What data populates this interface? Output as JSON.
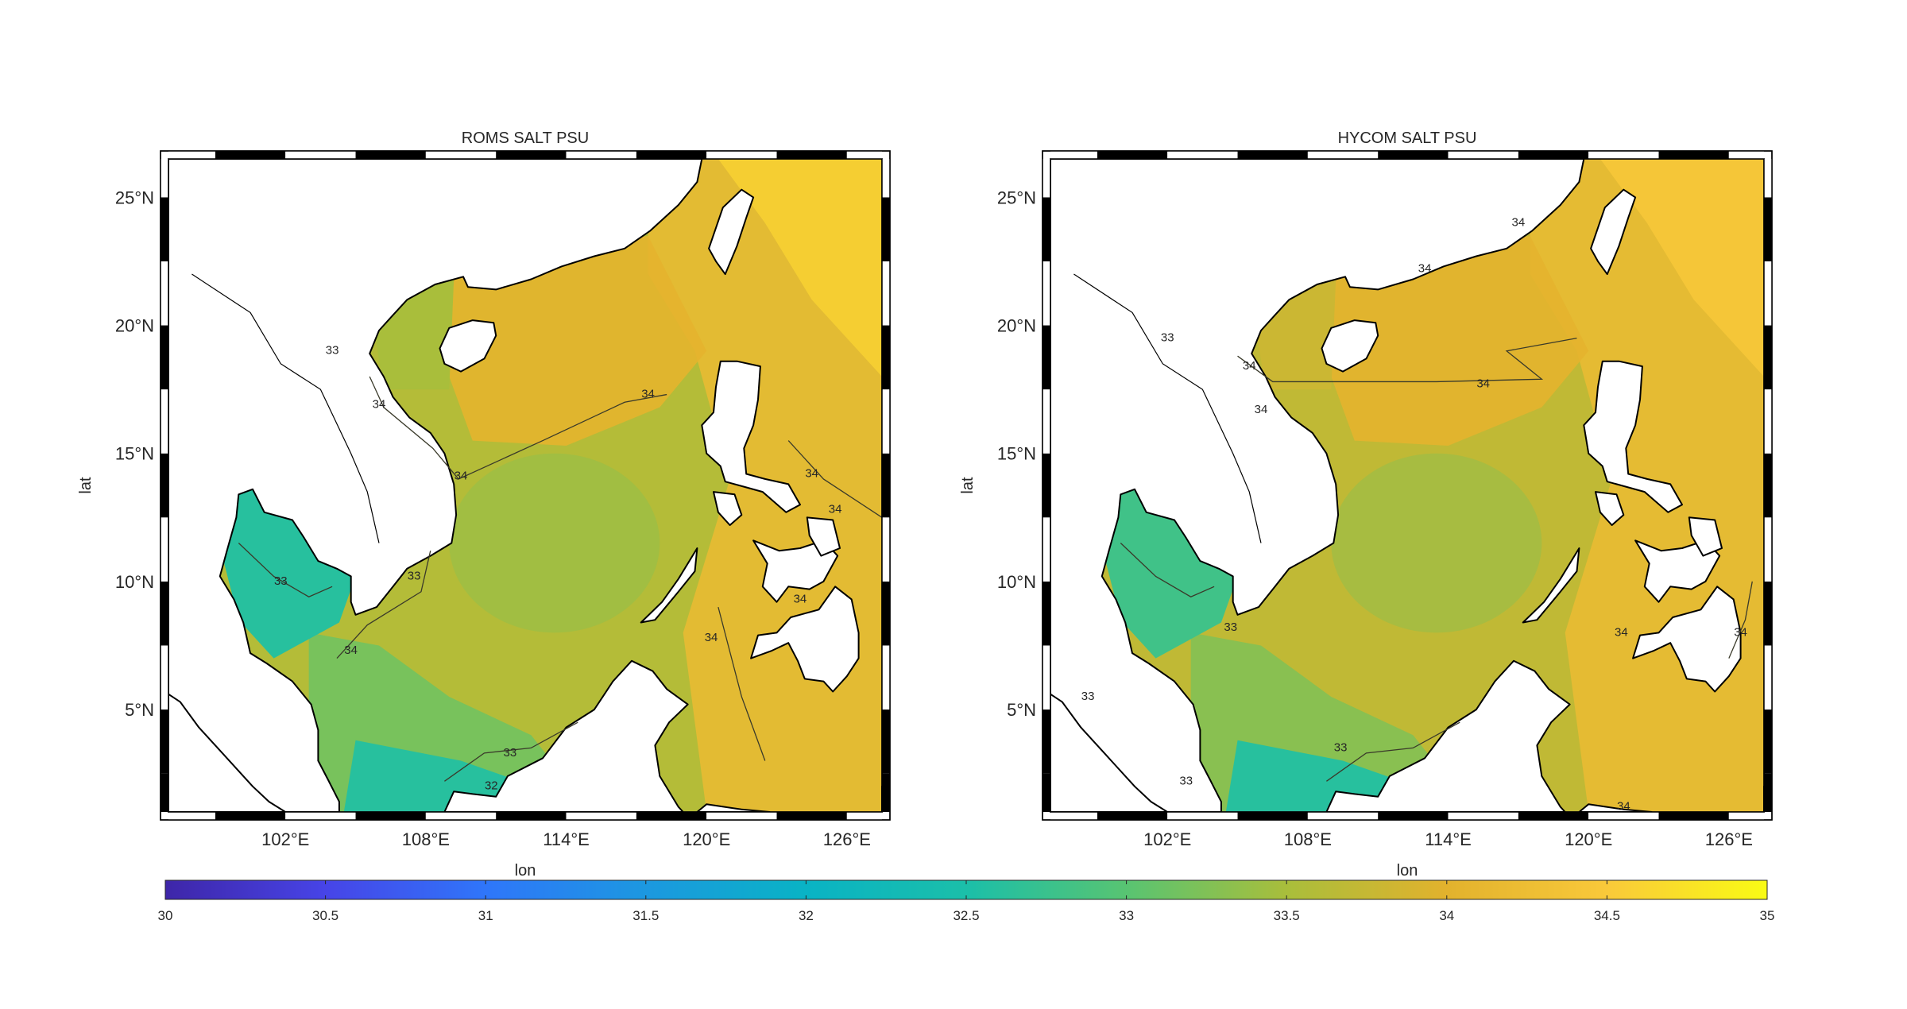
{
  "figure": {
    "colors": {
      "land": "#ffffff",
      "coast": "#000000",
      "contour": "#3a3a2a",
      "frame_dark": "#000000",
      "frame_light": "#ffffff"
    }
  },
  "chart_data": [
    {
      "type": "heatmap",
      "title": "ROMS SALT  PSU",
      "xlabel": "lon",
      "ylabel": "lat",
      "xlim": [
        97,
        127.5
      ],
      "ylim": [
        1,
        26.5
      ],
      "xticks": [
        102,
        108,
        114,
        120,
        126
      ],
      "xtick_labels": [
        "102°E",
        "108°E",
        "114°E",
        "120°E",
        "126°E"
      ],
      "yticks": [
        5,
        10,
        15,
        20,
        25
      ],
      "ytick_labels": [
        "5°N",
        "10°N",
        "15°N",
        "20°N",
        "25°N"
      ],
      "contour_levels": [
        32,
        33,
        34
      ],
      "contour_labels": [
        {
          "lon": 104.0,
          "lat": 19.0,
          "text": "33"
        },
        {
          "lon": 106.0,
          "lat": 16.9,
          "text": "34"
        },
        {
          "lon": 109.5,
          "lat": 14.1,
          "text": "34"
        },
        {
          "lon": 117.5,
          "lat": 17.3,
          "text": "34"
        },
        {
          "lon": 124.5,
          "lat": 14.2,
          "text": "34"
        },
        {
          "lon": 125.5,
          "lat": 12.8,
          "text": "34"
        },
        {
          "lon": 101.8,
          "lat": 10.0,
          "text": "33"
        },
        {
          "lon": 107.5,
          "lat": 10.2,
          "text": "33"
        },
        {
          "lon": 104.8,
          "lat": 7.3,
          "text": "34"
        },
        {
          "lon": 120.2,
          "lat": 7.8,
          "text": "34"
        },
        {
          "lon": 124.0,
          "lat": 9.3,
          "text": "34"
        },
        {
          "lon": 111.6,
          "lat": 3.3,
          "text": "33"
        },
        {
          "lon": 110.8,
          "lat": 2.0,
          "text": "32"
        }
      ],
      "field_description": {
        "open_sea": 33.6,
        "northeast_pacific": 34.6,
        "gulf_of_thailand": 32.6,
        "sunda_shelf": 33.2
      }
    },
    {
      "type": "heatmap",
      "title": "HYCOM SALT  PSU",
      "xlabel": "lon",
      "ylabel": "lat",
      "xlim": [
        97,
        127.5
      ],
      "ylim": [
        1,
        26.5
      ],
      "xticks": [
        102,
        108,
        114,
        120,
        126
      ],
      "xtick_labels": [
        "102°E",
        "108°E",
        "114°E",
        "120°E",
        "126°E"
      ],
      "yticks": [
        5,
        10,
        15,
        20,
        25
      ],
      "ytick_labels": [
        "5°N",
        "10°N",
        "15°N",
        "20°N",
        "25°N"
      ],
      "contour_levels": [
        33,
        34
      ],
      "contour_labels": [
        {
          "lon": 102.0,
          "lat": 19.5,
          "text": "33"
        },
        {
          "lon": 106.0,
          "lat": 16.7,
          "text": "34"
        },
        {
          "lon": 105.5,
          "lat": 18.4,
          "text": "34"
        },
        {
          "lon": 113.0,
          "lat": 22.2,
          "text": "34"
        },
        {
          "lon": 117.0,
          "lat": 24.0,
          "text": "34"
        },
        {
          "lon": 115.5,
          "lat": 17.7,
          "text": "34"
        },
        {
          "lon": 104.7,
          "lat": 8.2,
          "text": "33"
        },
        {
          "lon": 109.4,
          "lat": 3.5,
          "text": "33"
        },
        {
          "lon": 102.8,
          "lat": 2.2,
          "text": "33"
        },
        {
          "lon": 98.6,
          "lat": 5.5,
          "text": "33"
        },
        {
          "lon": 121.4,
          "lat": 8.0,
          "text": "34"
        },
        {
          "lon": 126.5,
          "lat": 8.0,
          "text": "34"
        },
        {
          "lon": 121.5,
          "lat": 1.2,
          "text": "34"
        }
      ],
      "field_description": {
        "open_sea": 33.7,
        "northeast_pacific": 34.5,
        "gulf_of_thailand": 32.8,
        "sunda_shelf": 33.3
      }
    }
  ],
  "colorbar": {
    "min": 30,
    "max": 35,
    "ticks": [
      30,
      30.5,
      31,
      31.5,
      32,
      32.5,
      33,
      33.5,
      34,
      34.5,
      35
    ],
    "tick_labels": [
      "30",
      "30.5",
      "31",
      "31.5",
      "32",
      "32.5",
      "33",
      "33.5",
      "34",
      "34.5",
      "35"
    ],
    "colormap": [
      "#3e26a8",
      "#4744e7",
      "#2f76fa",
      "#1c98e0",
      "#09b3c5",
      "#1bbfa9",
      "#58c472",
      "#a9be3b",
      "#e2b22d",
      "#f9c93a",
      "#f9fb14"
    ]
  }
}
